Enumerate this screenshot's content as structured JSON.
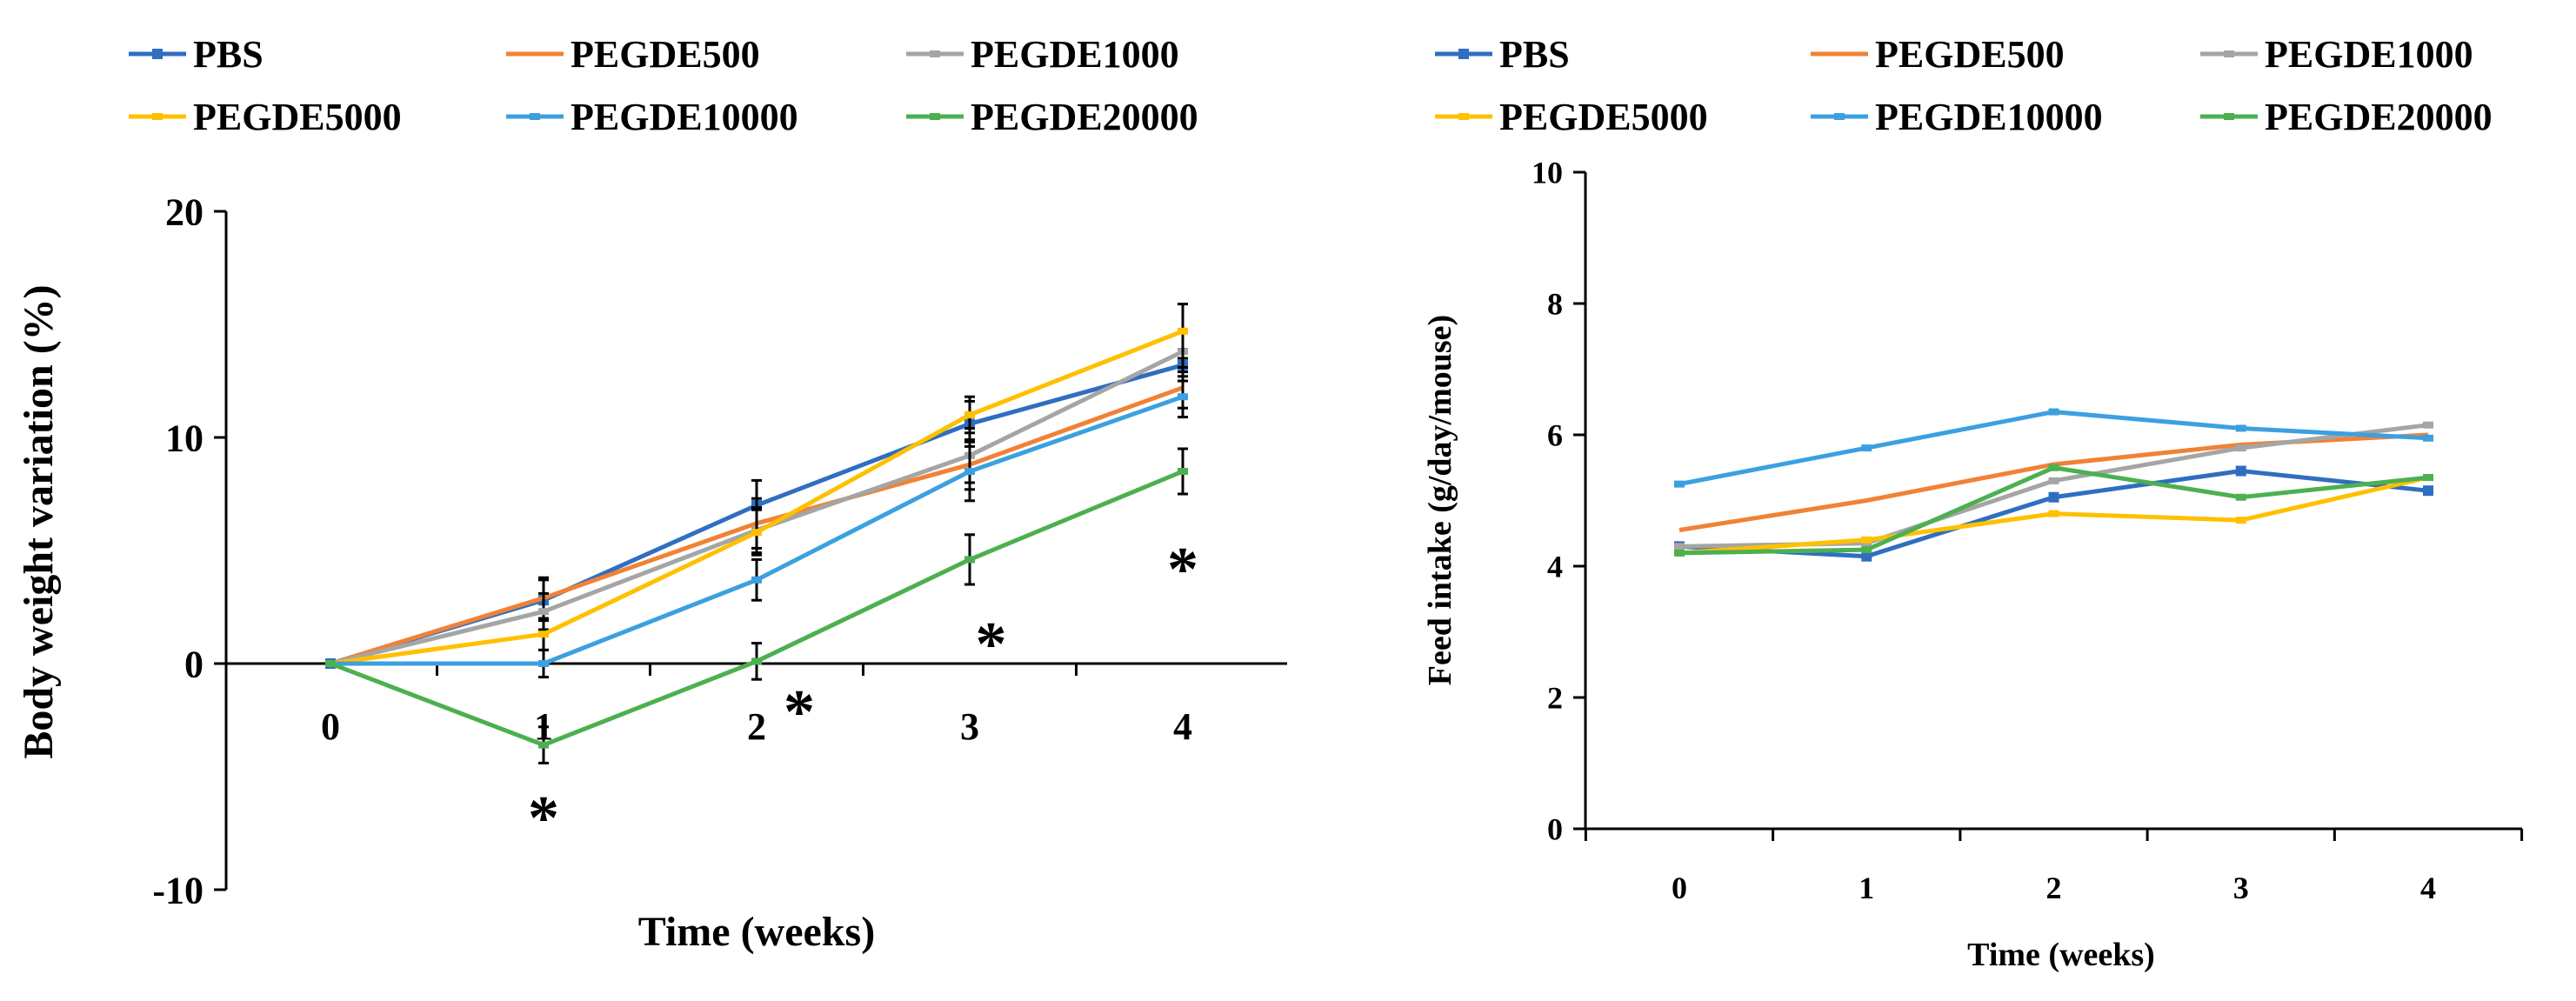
{
  "chart_data": [
    {
      "type": "line",
      "title": "",
      "xlabel": "Time (weeks)",
      "ylabel": "Body weight variation (%)",
      "x": [
        0,
        1,
        2,
        3,
        4
      ],
      "xticks": [
        "0",
        "1",
        "2",
        "3",
        "4"
      ],
      "ylim": [
        -10,
        20
      ],
      "yticks": [
        "-10",
        "0",
        "10",
        "20"
      ],
      "legend_position": "top",
      "series": [
        {
          "name": "PBS",
          "color": "#2F6EC0",
          "marker": "square",
          "values": [
            0,
            2.8,
            7.0,
            10.6,
            13.2
          ],
          "err": [
            0,
            0.9,
            1.1,
            1.0,
            0.7
          ]
        },
        {
          "name": "PEGDE500",
          "color": "#F08236",
          "marker": "none",
          "values": [
            0,
            2.9,
            6.2,
            8.8,
            12.2
          ],
          "err": [
            0,
            0.9,
            1.1,
            1.1,
            0.9
          ]
        },
        {
          "name": "PEGDE1000",
          "color": "#A5A5A5",
          "marker": "dash",
          "values": [
            0,
            2.3,
            5.9,
            9.2,
            13.8
          ],
          "err": [
            0,
            0.8,
            1.0,
            1.2,
            0.9
          ]
        },
        {
          "name": "PEGDE5000",
          "color": "#FFC000",
          "marker": "dash",
          "values": [
            0,
            1.3,
            5.8,
            11.0,
            14.7
          ],
          "err": [
            0,
            0.7,
            1.0,
            0.8,
            1.2
          ]
        },
        {
          "name": "PEGDE10000",
          "color": "#3CA0E0",
          "marker": "dash",
          "values": [
            0,
            0,
            3.7,
            8.5,
            11.8
          ],
          "err": [
            0,
            0.6,
            0.9,
            1.3,
            0.9
          ]
        },
        {
          "name": "PEGDE20000",
          "color": "#4CB050",
          "marker": "dash",
          "values": [
            0,
            -3.6,
            0.1,
            4.6,
            8.5
          ],
          "err": [
            0,
            0.8,
            0.8,
            1.1,
            1.0
          ]
        }
      ],
      "annotations": [
        {
          "text": "*",
          "x": 1,
          "y": -6.6
        },
        {
          "text": "*",
          "x": 2.2,
          "y": -1.9
        },
        {
          "text": "*",
          "x": 3.1,
          "y": 1.1
        },
        {
          "text": "*",
          "x": 4.0,
          "y": 4.4
        }
      ]
    },
    {
      "type": "line",
      "title": "",
      "xlabel": "Time (weeks)",
      "ylabel": "Feed intake (g/day/mouse)",
      "x": [
        0,
        1,
        2,
        3,
        4
      ],
      "xticks": [
        "0",
        "1",
        "2",
        "3",
        "4"
      ],
      "ylim": [
        0,
        10
      ],
      "yticks": [
        "0",
        "2",
        "4",
        "6",
        "8",
        "10"
      ],
      "legend_position": "top",
      "series": [
        {
          "name": "PBS",
          "color": "#2F6EC0",
          "marker": "square",
          "values": [
            4.3,
            4.15,
            5.05,
            5.45,
            5.15
          ]
        },
        {
          "name": "PEGDE500",
          "color": "#F08236",
          "marker": "none",
          "values": [
            4.55,
            5.0,
            5.55,
            5.85,
            6.0
          ]
        },
        {
          "name": "PEGDE1000",
          "color": "#A5A5A5",
          "marker": "dash",
          "values": [
            4.3,
            4.35,
            5.3,
            5.8,
            6.15
          ]
        },
        {
          "name": "PEGDE5000",
          "color": "#FFC000",
          "marker": "dash",
          "values": [
            4.2,
            4.4,
            4.8,
            4.7,
            5.35
          ]
        },
        {
          "name": "PEGDE10000",
          "color": "#3CA0E0",
          "marker": "dash",
          "values": [
            5.25,
            5.8,
            6.35,
            6.1,
            5.95
          ]
        },
        {
          "name": "PEGDE20000",
          "color": "#4CB050",
          "marker": "dash",
          "values": [
            4.2,
            4.25,
            5.5,
            5.05,
            5.35
          ]
        }
      ]
    }
  ]
}
